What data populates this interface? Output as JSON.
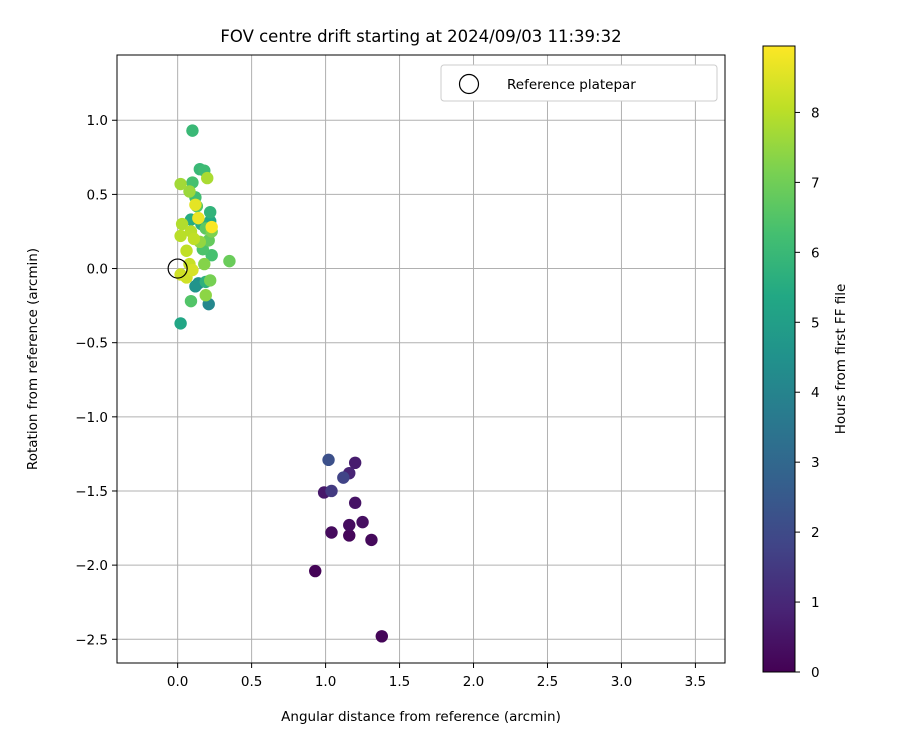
{
  "chart_data": {
    "type": "scatter",
    "title": "FOV centre drift starting at 2024/09/03 11:39:32",
    "xlabel": "Angular distance from reference (arcmin)",
    "ylabel": "Rotation from reference (arcmin)",
    "xlim": [
      -0.41,
      3.7
    ],
    "ylim": [
      -2.66,
      1.44
    ],
    "xticks": [
      0.0,
      0.5,
      1.0,
      1.5,
      2.0,
      2.5,
      3.0,
      3.5
    ],
    "xtick_labels": [
      "0.0",
      "0.5",
      "1.0",
      "1.5",
      "2.0",
      "2.5",
      "3.0",
      "3.5"
    ],
    "yticks": [
      1.0,
      0.5,
      0.0,
      -0.5,
      -1.0,
      -1.5,
      -2.0,
      -2.5
    ],
    "ytick_labels": [
      "1.0",
      "0.5",
      "0.0",
      "−0.5",
      "−1.0",
      "−1.5",
      "−2.0",
      "−2.5"
    ],
    "grid": true,
    "legend": {
      "placement": "top-right",
      "entries": [
        "Reference platepar"
      ]
    },
    "reference_point": {
      "x": 0.0,
      "y": 0.0
    },
    "colorbar": {
      "label": "Hours from first FF file",
      "colormap": "viridis",
      "range": [
        0,
        8.95
      ],
      "ticks": [
        0,
        1,
        2,
        3,
        4,
        5,
        6,
        7,
        8
      ],
      "tick_labels": [
        "0",
        "1",
        "2",
        "3",
        "4",
        "5",
        "6",
        "7",
        "8"
      ]
    },
    "points": [
      {
        "x": 0.93,
        "y": -2.04,
        "c": 0.05
      },
      {
        "x": 1.38,
        "y": -2.48,
        "c": 0.1
      },
      {
        "x": 1.16,
        "y": -1.8,
        "c": 0.15
      },
      {
        "x": 1.31,
        "y": -1.83,
        "c": 0.2
      },
      {
        "x": 1.04,
        "y": -1.78,
        "c": 0.25
      },
      {
        "x": 1.16,
        "y": -1.73,
        "c": 0.3
      },
      {
        "x": 1.25,
        "y": -1.71,
        "c": 0.35
      },
      {
        "x": 1.2,
        "y": -1.58,
        "c": 0.45
      },
      {
        "x": 0.99,
        "y": -1.51,
        "c": 0.6
      },
      {
        "x": 1.2,
        "y": -1.31,
        "c": 0.7
      },
      {
        "x": 1.16,
        "y": -1.38,
        "c": 0.9
      },
      {
        "x": 1.04,
        "y": -1.5,
        "c": 1.5
      },
      {
        "x": 1.12,
        "y": -1.41,
        "c": 1.8
      },
      {
        "x": 1.02,
        "y": -1.29,
        "c": 2.2
      },
      {
        "x": 0.21,
        "y": -0.24,
        "c": 4.1
      },
      {
        "x": 0.14,
        "y": -0.1,
        "c": 4.4
      },
      {
        "x": 0.12,
        "y": -0.12,
        "c": 4.6
      },
      {
        "x": 0.02,
        "y": -0.37,
        "c": 5.3
      },
      {
        "x": 0.22,
        "y": 0.32,
        "c": 5.4
      },
      {
        "x": 0.09,
        "y": 0.33,
        "c": 5.5
      },
      {
        "x": 0.16,
        "y": 0.3,
        "c": 5.6
      },
      {
        "x": 0.19,
        "y": -0.09,
        "c": 5.7
      },
      {
        "x": 0.22,
        "y": 0.38,
        "c": 5.8
      },
      {
        "x": 0.1,
        "y": 0.93,
        "c": 6.0
      },
      {
        "x": 0.15,
        "y": 0.67,
        "c": 6.0
      },
      {
        "x": 0.18,
        "y": 0.66,
        "c": 6.1
      },
      {
        "x": 0.12,
        "y": 0.48,
        "c": 6.2
      },
      {
        "x": 0.1,
        "y": 0.58,
        "c": 6.3
      },
      {
        "x": 0.23,
        "y": 0.09,
        "c": 6.3
      },
      {
        "x": 0.17,
        "y": 0.13,
        "c": 6.4
      },
      {
        "x": 0.09,
        "y": -0.22,
        "c": 6.5
      },
      {
        "x": 0.13,
        "y": 0.42,
        "c": 6.6
      },
      {
        "x": 0.19,
        "y": 0.27,
        "c": 6.7
      },
      {
        "x": 0.21,
        "y": 0.19,
        "c": 6.8
      },
      {
        "x": 0.35,
        "y": 0.05,
        "c": 6.9
      },
      {
        "x": 0.22,
        "y": -0.08,
        "c": 7.1
      },
      {
        "x": 0.23,
        "y": 0.25,
        "c": 7.2
      },
      {
        "x": 0.18,
        "y": 0.03,
        "c": 7.3
      },
      {
        "x": 0.19,
        "y": -0.18,
        "c": 7.4
      },
      {
        "x": 0.15,
        "y": 0.18,
        "c": 7.5
      },
      {
        "x": 0.08,
        "y": 0.52,
        "c": 7.6
      },
      {
        "x": 0.02,
        "y": 0.57,
        "c": 7.7
      },
      {
        "x": 0.2,
        "y": 0.61,
        "c": 7.8
      },
      {
        "x": 0.03,
        "y": 0.3,
        "c": 7.9
      },
      {
        "x": 0.09,
        "y": 0.25,
        "c": 8.0
      },
      {
        "x": 0.02,
        "y": 0.22,
        "c": 8.0
      },
      {
        "x": 0.11,
        "y": 0.2,
        "c": 8.1
      },
      {
        "x": 0.06,
        "y": 0.12,
        "c": 8.1
      },
      {
        "x": 0.08,
        "y": 0.03,
        "c": 8.2
      },
      {
        "x": 0.02,
        "y": -0.04,
        "c": 8.3
      },
      {
        "x": 0.06,
        "y": -0.06,
        "c": 8.3
      },
      {
        "x": 0.1,
        "y": -0.01,
        "c": 8.4
      },
      {
        "x": 0.12,
        "y": 0.43,
        "c": 8.6
      },
      {
        "x": 0.14,
        "y": 0.34,
        "c": 8.7
      },
      {
        "x": 0.23,
        "y": 0.28,
        "c": 8.9
      }
    ]
  }
}
